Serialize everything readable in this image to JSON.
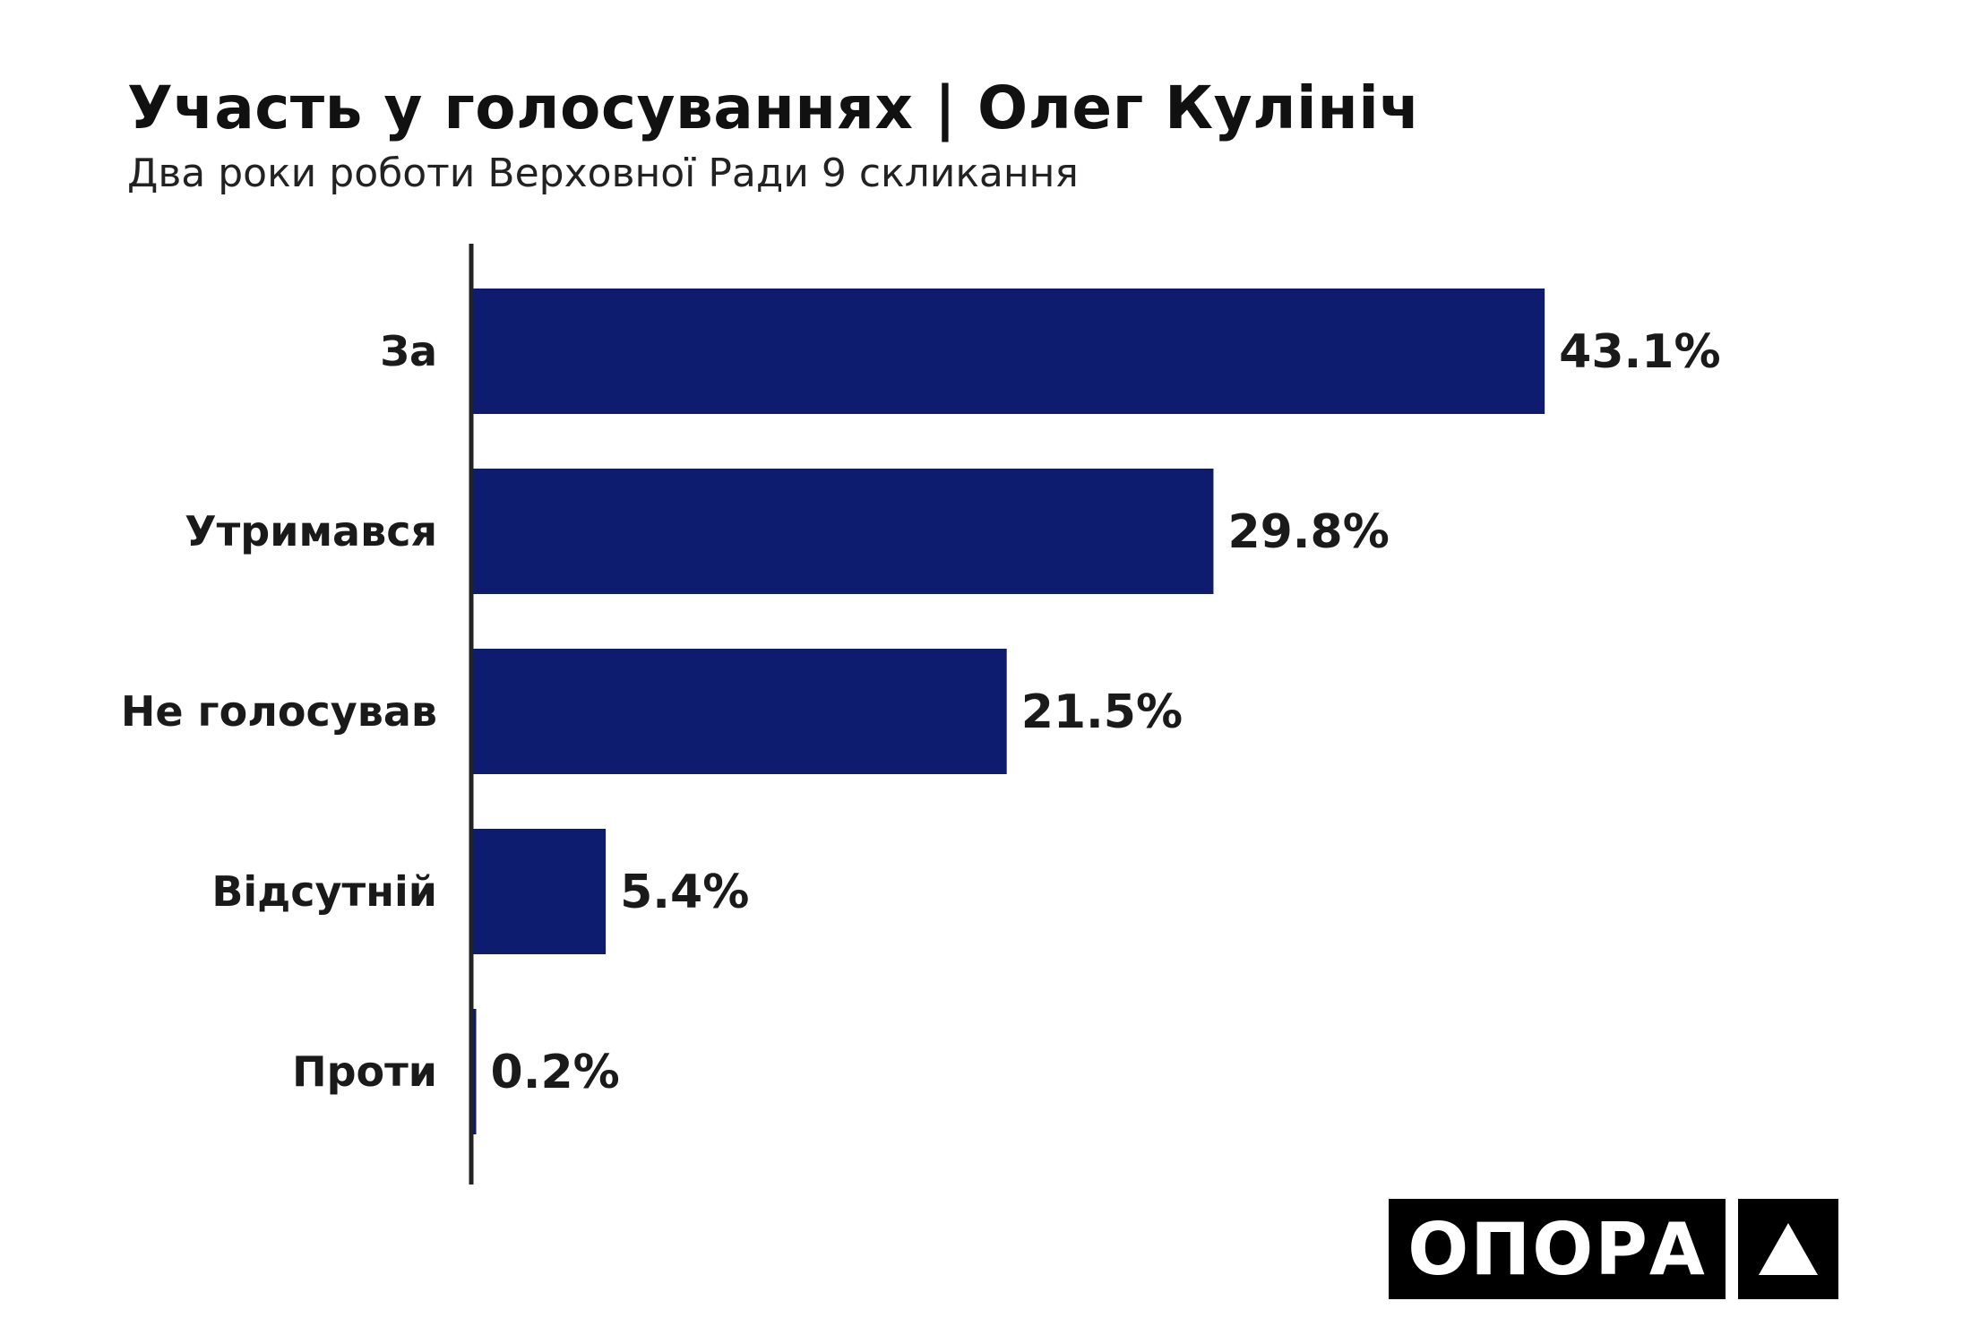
{
  "header": {
    "title": "Участь у голосуваннях | Олег Кулініч",
    "subtitle": "Два роки роботи Верховної Ради 9 скликання"
  },
  "chart_data": {
    "type": "bar",
    "orientation": "horizontal",
    "categories": [
      "За",
      "Утримався",
      "Не голосував",
      "Відсутній",
      "Проти"
    ],
    "values": [
      43.1,
      29.8,
      21.5,
      5.4,
      0.2
    ],
    "value_labels": [
      "43.1%",
      "29.8%",
      "21.5%",
      "5.4%",
      "0.2%"
    ],
    "title": "Участь у голосуваннях | Олег Кулініч",
    "subtitle": "Два роки роботи Верховної Ради 9 скликання",
    "xlabel": "",
    "ylabel": "",
    "xlim": [
      0,
      50
    ],
    "grid": false,
    "legend": "none",
    "bar_color": "#0e1c70"
  },
  "logo": {
    "text": "ОПОРА",
    "mark_icon": "triangle-up-icon"
  },
  "colors": {
    "bar": "#0e1c70",
    "axis": "#222222",
    "logo_bg": "#000000",
    "logo_fg": "#ffffff"
  }
}
